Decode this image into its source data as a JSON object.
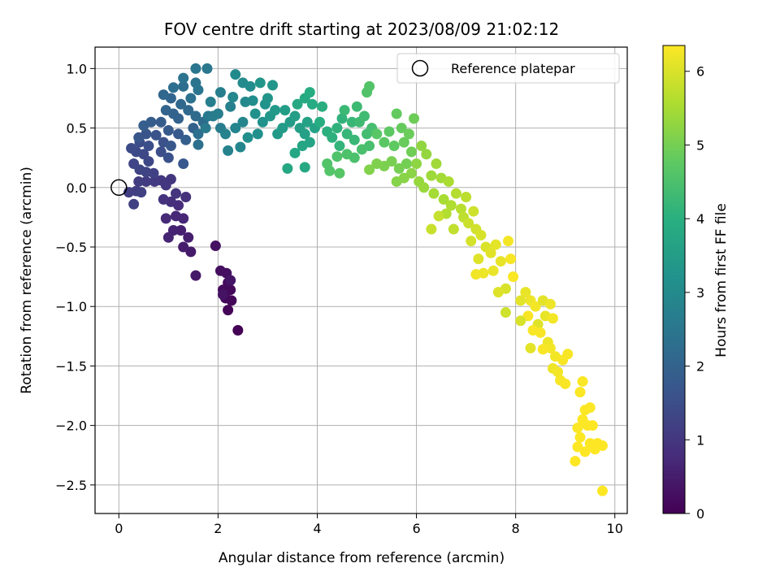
{
  "chart_data": {
    "type": "scatter",
    "title": "FOV centre drift starting at 2023/08/09 21:02:12",
    "xlabel": "Angular distance from reference (arcmin)",
    "ylabel": "Rotation from reference (arcmin)",
    "xlim": [
      -0.48,
      10.25
    ],
    "ylim": [
      -2.74,
      1.18
    ],
    "xticks": [
      0,
      2,
      4,
      6,
      8,
      10
    ],
    "xtick_labels": [
      "0",
      "2",
      "4",
      "6",
      "8",
      "10"
    ],
    "yticks": [
      1.0,
      0.5,
      0.0,
      -0.5,
      -1.0,
      -1.5,
      -2.0,
      -2.5
    ],
    "ytick_labels": [
      "1.0",
      "0.5",
      "0.0",
      "−0.5",
      "−1.0",
      "−1.5",
      "−2.0",
      "−2.5"
    ],
    "grid": true,
    "legend": {
      "position": "top-right",
      "entries": [
        "Reference platepar"
      ]
    },
    "reference_point": {
      "x": 0.0,
      "y": 0.0
    },
    "colorbar": {
      "label": "Hours from first FF file",
      "colormap": "viridis",
      "range": [
        0,
        6.35
      ],
      "ticks": [
        0,
        1,
        2,
        3,
        4,
        5,
        6
      ],
      "tick_labels": [
        "0",
        "1",
        "2",
        "3",
        "4",
        "5",
        "6"
      ]
    },
    "points": [
      [
        2.4,
        -1.2,
        0.03
      ],
      [
        2.2,
        -1.03,
        0.06
      ],
      [
        2.27,
        -0.95,
        0.09
      ],
      [
        2.15,
        -0.93,
        0.12
      ],
      [
        2.25,
        -0.86,
        0.15
      ],
      [
        2.1,
        -0.86,
        0.18
      ],
      [
        2.2,
        -0.8,
        0.21
      ],
      [
        2.05,
        -0.7,
        0.24
      ],
      [
        2.17,
        -0.72,
        0.27
      ],
      [
        1.95,
        -0.49,
        0.3
      ],
      [
        2.1,
        -0.9,
        0.33
      ],
      [
        2.25,
        -0.78,
        0.36
      ],
      [
        1.55,
        -0.74,
        0.42
      ],
      [
        1.45,
        -0.54,
        0.46
      ],
      [
        1.3,
        -0.5,
        0.5
      ],
      [
        1.4,
        -0.42,
        0.54
      ],
      [
        1.25,
        -0.36,
        0.58
      ],
      [
        1.1,
        -0.36,
        0.62
      ],
      [
        1.0,
        -0.42,
        0.66
      ],
      [
        1.3,
        -0.26,
        0.7
      ],
      [
        1.15,
        -0.24,
        0.74
      ],
      [
        0.95,
        -0.26,
        0.78
      ],
      [
        1.2,
        -0.15,
        0.82
      ],
      [
        1.05,
        -0.12,
        0.86
      ],
      [
        1.35,
        -0.08,
        0.9
      ],
      [
        0.9,
        -0.1,
        0.94
      ],
      [
        1.15,
        -0.05,
        0.98
      ],
      [
        1.05,
        0.07,
        1.0
      ],
      [
        0.95,
        0.02,
        1.03
      ],
      [
        0.85,
        0.06,
        1.06
      ],
      [
        0.72,
        0.05,
        1.09
      ],
      [
        0.55,
        0.05,
        1.12
      ],
      [
        0.4,
        0.05,
        1.14
      ],
      [
        0.35,
        -0.03,
        1.16
      ],
      [
        0.2,
        -0.04,
        1.18
      ],
      [
        0.3,
        -0.14,
        1.2
      ],
      [
        0.45,
        -0.04,
        1.22
      ],
      [
        0.7,
        0.12,
        1.25
      ],
      [
        0.55,
        0.13,
        1.28
      ],
      [
        0.42,
        0.15,
        1.31
      ],
      [
        0.3,
        0.2,
        1.34
      ],
      [
        0.6,
        0.22,
        1.37
      ],
      [
        0.5,
        0.28,
        1.4
      ],
      [
        0.35,
        0.3,
        1.43
      ],
      [
        0.25,
        0.33,
        1.46
      ],
      [
        0.42,
        0.38,
        1.49
      ],
      [
        0.6,
        0.35,
        1.52
      ],
      [
        0.85,
        0.3,
        1.55
      ],
      [
        1.0,
        0.25,
        1.58
      ],
      [
        0.9,
        0.38,
        1.61
      ],
      [
        0.75,
        0.44,
        1.64
      ],
      [
        0.55,
        0.45,
        1.67
      ],
      [
        0.4,
        0.42,
        1.7
      ],
      [
        1.3,
        0.2,
        1.73
      ],
      [
        1.05,
        0.35,
        1.76
      ],
      [
        1.2,
        0.45,
        1.79
      ],
      [
        1.0,
        0.48,
        1.82
      ],
      [
        0.85,
        0.55,
        1.85
      ],
      [
        0.65,
        0.55,
        1.88
      ],
      [
        0.5,
        0.52,
        1.91
      ],
      [
        1.35,
        0.4,
        1.94
      ],
      [
        1.5,
        0.5,
        1.97
      ],
      [
        1.2,
        0.58,
        2.0
      ],
      [
        1.1,
        0.62,
        2.03
      ],
      [
        0.95,
        0.65,
        2.06
      ],
      [
        1.05,
        0.75,
        2.09
      ],
      [
        0.9,
        0.78,
        2.12
      ],
      [
        1.25,
        0.7,
        2.15
      ],
      [
        1.4,
        0.65,
        2.18
      ],
      [
        1.55,
        0.6,
        2.21
      ],
      [
        1.7,
        0.55,
        2.24
      ],
      [
        1.3,
        0.85,
        2.27
      ],
      [
        1.1,
        0.84,
        2.3
      ],
      [
        1.6,
        0.45,
        2.33
      ],
      [
        1.6,
        0.36,
        2.36
      ],
      [
        1.45,
        0.75,
        2.39
      ],
      [
        1.3,
        0.92,
        2.42
      ],
      [
        1.55,
        0.88,
        2.45
      ],
      [
        1.6,
        0.82,
        2.48
      ],
      [
        1.55,
        1.0,
        2.51
      ],
      [
        1.78,
        1.0,
        2.54
      ],
      [
        1.8,
        0.6,
        2.57
      ],
      [
        1.75,
        0.5,
        2.6
      ],
      [
        1.9,
        0.6,
        2.63
      ],
      [
        2.05,
        0.5,
        2.66
      ],
      [
        2.0,
        0.62,
        2.69
      ],
      [
        2.05,
        0.8,
        2.72
      ],
      [
        1.85,
        0.72,
        2.75
      ],
      [
        2.25,
        0.68,
        2.78
      ],
      [
        2.15,
        0.45,
        2.81
      ],
      [
        2.2,
        0.31,
        2.84
      ],
      [
        2.35,
        0.5,
        2.87
      ],
      [
        2.5,
        0.55,
        2.9
      ],
      [
        2.45,
        0.34,
        2.93
      ],
      [
        2.3,
        0.76,
        2.96
      ],
      [
        2.55,
        0.72,
        2.99
      ],
      [
        2.35,
        0.95,
        3.02
      ],
      [
        2.5,
        0.88,
        3.05
      ],
      [
        2.65,
        0.85,
        3.08
      ],
      [
        2.7,
        0.73,
        3.11
      ],
      [
        2.6,
        0.42,
        3.14
      ],
      [
        2.8,
        0.45,
        3.17
      ],
      [
        2.9,
        0.55,
        3.2
      ],
      [
        2.75,
        0.62,
        3.23
      ],
      [
        2.95,
        0.7,
        3.26
      ],
      [
        3.0,
        0.75,
        3.29
      ],
      [
        2.85,
        0.88,
        3.32
      ],
      [
        3.1,
        0.86,
        3.35
      ],
      [
        3.05,
        0.6,
        3.38
      ],
      [
        3.15,
        0.65,
        3.41
      ],
      [
        3.2,
        0.45,
        3.44
      ],
      [
        3.3,
        0.5,
        3.47
      ],
      [
        3.45,
        0.55,
        3.5
      ],
      [
        3.35,
        0.65,
        3.53
      ],
      [
        3.55,
        0.6,
        3.56
      ],
      [
        3.65,
        0.5,
        3.59
      ],
      [
        3.75,
        0.45,
        3.62
      ],
      [
        3.8,
        0.55,
        3.65
      ],
      [
        3.95,
        0.5,
        3.68
      ],
      [
        3.85,
        0.38,
        3.71
      ],
      [
        3.7,
        0.35,
        3.74
      ],
      [
        3.55,
        0.29,
        3.77
      ],
      [
        3.4,
        0.16,
        3.8
      ],
      [
        3.75,
        0.17,
        3.83
      ],
      [
        3.6,
        0.7,
        3.86
      ],
      [
        3.75,
        0.75,
        3.89
      ],
      [
        3.9,
        0.7,
        3.92
      ],
      [
        3.85,
        0.8,
        3.95
      ],
      [
        4.05,
        0.55,
        3.98
      ],
      [
        4.1,
        0.68,
        4.01
      ],
      [
        4.2,
        0.47,
        4.04
      ],
      [
        4.3,
        0.42,
        4.07
      ],
      [
        4.4,
        0.5,
        4.1
      ],
      [
        4.5,
        0.58,
        4.13
      ],
      [
        4.45,
        0.35,
        4.16
      ],
      [
        4.6,
        0.45,
        4.19
      ],
      [
        4.7,
        0.55,
        4.22
      ],
      [
        4.75,
        0.4,
        4.25
      ],
      [
        4.55,
        0.65,
        4.28
      ],
      [
        4.8,
        0.68,
        4.31
      ],
      [
        4.85,
        0.55,
        4.34
      ],
      [
        4.95,
        0.6,
        4.37
      ],
      [
        5.0,
        0.45,
        4.4
      ],
      [
        5.1,
        0.5,
        4.43
      ],
      [
        5.05,
        0.35,
        4.46
      ],
      [
        4.9,
        0.32,
        4.49
      ],
      [
        4.75,
        0.25,
        4.52
      ],
      [
        4.6,
        0.28,
        4.55
      ],
      [
        4.4,
        0.26,
        4.58
      ],
      [
        4.2,
        0.2,
        4.61
      ],
      [
        4.25,
        0.14,
        4.64
      ],
      [
        4.45,
        0.12,
        4.67
      ],
      [
        5.0,
        0.8,
        4.6
      ],
      [
        5.05,
        0.85,
        4.62
      ],
      [
        5.2,
        0.45,
        4.7
      ],
      [
        5.35,
        0.38,
        4.73
      ],
      [
        5.45,
        0.47,
        4.76
      ],
      [
        5.55,
        0.35,
        4.79
      ],
      [
        5.6,
        0.62,
        4.82
      ],
      [
        5.7,
        0.5,
        4.85
      ],
      [
        5.75,
        0.38,
        4.88
      ],
      [
        5.85,
        0.45,
        4.91
      ],
      [
        5.95,
        0.58,
        4.94
      ],
      [
        5.9,
        0.3,
        4.97
      ],
      [
        5.8,
        0.2,
        5.0
      ],
      [
        5.65,
        0.16,
        5.03
      ],
      [
        5.5,
        0.22,
        5.06
      ],
      [
        5.35,
        0.18,
        5.09
      ],
      [
        5.2,
        0.2,
        5.12
      ],
      [
        5.05,
        0.15,
        5.15
      ],
      [
        5.6,
        0.05,
        5.18
      ],
      [
        5.75,
        0.08,
        5.21
      ],
      [
        5.9,
        0.12,
        5.24
      ],
      [
        6.0,
        0.2,
        5.27
      ],
      [
        6.1,
        0.35,
        5.3
      ],
      [
        6.2,
        0.28,
        5.33
      ],
      [
        6.05,
        0.05,
        5.36
      ],
      [
        6.15,
        0.0,
        5.39
      ],
      [
        6.3,
        0.1,
        5.42
      ],
      [
        6.4,
        0.2,
        5.45
      ],
      [
        6.5,
        0.08,
        5.48
      ],
      [
        6.35,
        -0.05,
        5.51
      ],
      [
        6.55,
        -0.1,
        5.54
      ],
      [
        6.65,
        0.05,
        5.57
      ],
      [
        6.7,
        -0.15,
        5.6
      ],
      [
        6.6,
        -0.22,
        5.63
      ],
      [
        6.8,
        -0.05,
        5.66
      ],
      [
        6.9,
        -0.18,
        5.69
      ],
      [
        7.0,
        -0.08,
        5.72
      ],
      [
        6.95,
        -0.25,
        5.75
      ],
      [
        6.75,
        -0.35,
        5.78
      ],
      [
        6.45,
        -0.24,
        5.81
      ],
      [
        6.3,
        -0.35,
        5.84
      ],
      [
        7.05,
        -0.3,
        5.87
      ],
      [
        7.15,
        -0.2,
        5.9
      ],
      [
        7.2,
        -0.35,
        5.93
      ],
      [
        7.1,
        -0.45,
        5.96
      ],
      [
        7.3,
        -0.4,
        5.99
      ],
      [
        7.4,
        -0.5,
        6.02
      ],
      [
        7.25,
        -0.6,
        6.05
      ],
      [
        7.5,
        -0.55,
        6.08
      ],
      [
        7.6,
        -0.48,
        6.11
      ],
      [
        7.7,
        -0.62,
        6.14
      ],
      [
        7.55,
        -0.7,
        6.17
      ],
      [
        7.35,
        -0.72,
        6.2
      ],
      [
        7.2,
        -0.73,
        6.23
      ],
      [
        7.85,
        -0.45,
        6.26
      ],
      [
        7.9,
        -0.6,
        6.29
      ],
      [
        7.95,
        -0.75,
        6.32
      ],
      [
        7.8,
        -0.85,
        6.0
      ],
      [
        7.65,
        -0.88,
        6.05
      ],
      [
        8.1,
        -0.95,
        6.1
      ],
      [
        8.2,
        -0.88,
        6.15
      ],
      [
        8.3,
        -0.95,
        6.2
      ],
      [
        8.4,
        -1.0,
        6.25
      ],
      [
        8.25,
        -1.08,
        6.3
      ],
      [
        8.1,
        -1.12,
        6.0
      ],
      [
        8.45,
        -1.15,
        6.05
      ],
      [
        8.55,
        -0.95,
        6.1
      ],
      [
        8.6,
        -1.08,
        6.15
      ],
      [
        8.7,
        -0.98,
        6.2
      ],
      [
        8.75,
        -1.1,
        6.25
      ],
      [
        8.35,
        -1.2,
        6.3
      ],
      [
        8.5,
        -1.22,
        6.3
      ],
      [
        7.8,
        -1.05,
        5.9
      ],
      [
        8.65,
        -1.3,
        6.2
      ],
      [
        8.7,
        -1.35,
        6.25
      ],
      [
        8.55,
        -1.36,
        6.3
      ],
      [
        8.3,
        -1.35,
        6.1
      ],
      [
        8.8,
        -1.42,
        6.25
      ],
      [
        8.95,
        -1.45,
        6.3
      ],
      [
        9.05,
        -1.4,
        6.3
      ],
      [
        8.75,
        -1.52,
        6.2
      ],
      [
        8.85,
        -1.55,
        6.25
      ],
      [
        8.9,
        -1.62,
        6.28
      ],
      [
        9.0,
        -1.65,
        6.3
      ],
      [
        9.35,
        -1.63,
        6.32
      ],
      [
        9.3,
        -1.72,
        6.33
      ],
      [
        9.4,
        -1.87,
        6.34
      ],
      [
        9.5,
        -1.85,
        6.33
      ],
      [
        9.35,
        -1.95,
        6.34
      ],
      [
        9.45,
        -2.0,
        6.34
      ],
      [
        9.25,
        -2.02,
        6.33
      ],
      [
        9.55,
        -2.0,
        6.35
      ],
      [
        9.3,
        -2.1,
        6.34
      ],
      [
        9.5,
        -2.15,
        6.35
      ],
      [
        9.65,
        -2.15,
        6.35
      ],
      [
        9.25,
        -2.18,
        6.34
      ],
      [
        9.4,
        -2.22,
        6.35
      ],
      [
        9.6,
        -2.2,
        6.35
      ],
      [
        9.75,
        -2.17,
        6.35
      ],
      [
        9.2,
        -2.3,
        6.35
      ],
      [
        9.75,
        -2.55,
        6.35
      ]
    ]
  }
}
